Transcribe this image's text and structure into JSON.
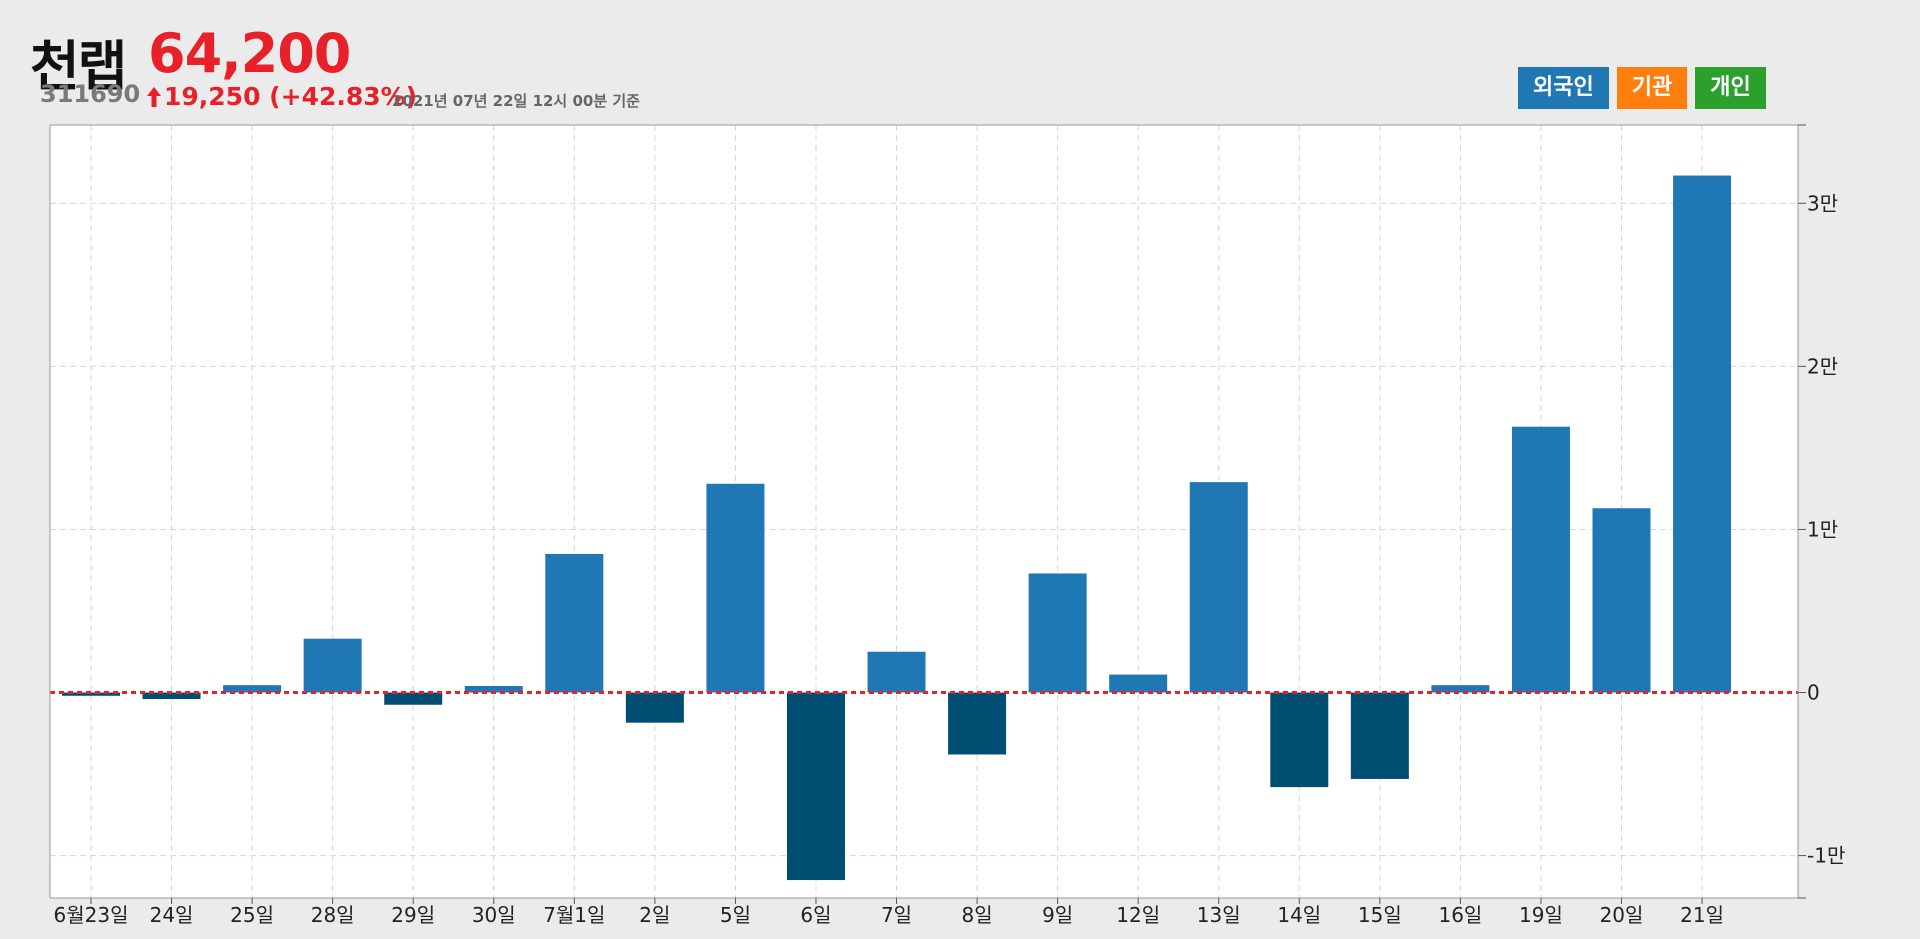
{
  "header": {
    "name": "천랩",
    "price": "64,200",
    "code": "311690",
    "change": "19,250 (+42.83%)",
    "timestamp": "2021년 07년 22일 12시 00분 기준"
  },
  "legend": {
    "foreign": "외국인",
    "institution": "기관",
    "individual": "개인"
  },
  "colors": {
    "positive": "#1f77b4",
    "negative": "#004f73",
    "zero_line": "#e8202a",
    "up": "#e8202a"
  },
  "chart_data": {
    "type": "bar",
    "series": [
      {
        "name": "외국인",
        "values": [
          -200,
          -400,
          450,
          3300,
          -750,
          400,
          8500,
          -1850,
          12800,
          -11500,
          2500,
          -3800,
          7300,
          1100,
          12900,
          -5800,
          -5300,
          450,
          16300,
          11300,
          31700
        ]
      }
    ],
    "categories": [
      "6월23일",
      "24일",
      "25일",
      "28일",
      "29일",
      "30일",
      "7월1일",
      "2일",
      "5일",
      "6일",
      "7일",
      "8일",
      "9일",
      "12일",
      "13일",
      "14일",
      "15일",
      "16일",
      "19일",
      "20일",
      "21일"
    ],
    "yticks": [
      {
        "value": -10000,
        "label": "-1만"
      },
      {
        "value": 0,
        "label": "0"
      },
      {
        "value": 10000,
        "label": "1만"
      },
      {
        "value": 20000,
        "label": "2만"
      },
      {
        "value": 30000,
        "label": "3만"
      }
    ],
    "ylim": [
      -12600,
      34800
    ],
    "grid": true
  }
}
